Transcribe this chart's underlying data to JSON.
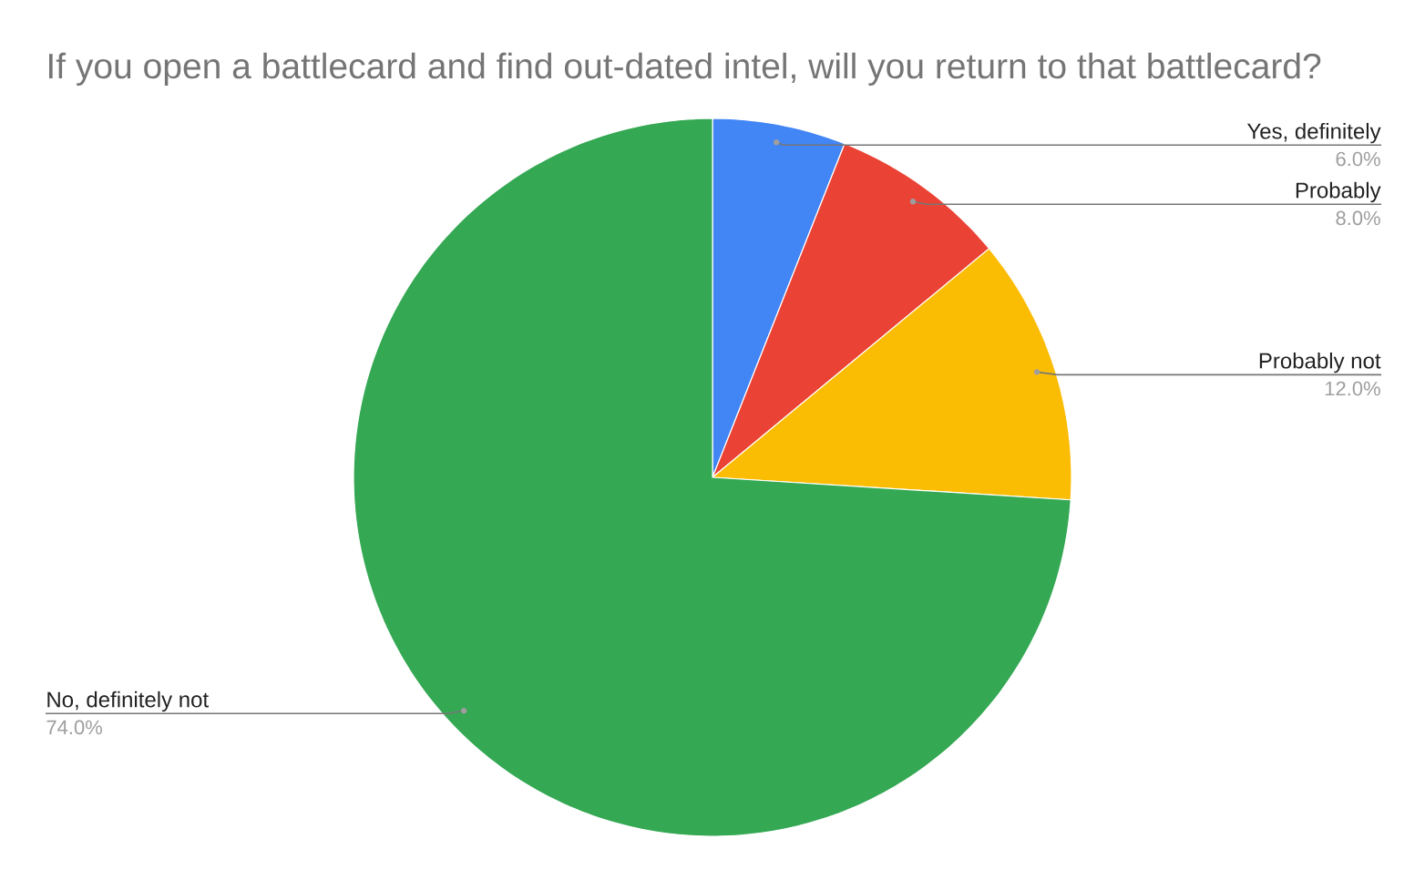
{
  "chart_data": {
    "type": "pie",
    "title": "If you open a battlecard and find out-dated intel, will you return to that battlecard?",
    "categories": [
      "Yes, definitely",
      "Probably",
      "Probably not",
      "No, definitely not"
    ],
    "values": [
      6,
      8,
      12,
      74
    ],
    "colors": [
      "#4285f4",
      "#ea4335",
      "#fbbc04",
      "#34a853"
    ],
    "value_labels": [
      "6.0%",
      "8.0%",
      "12.0%",
      "74.0%"
    ]
  }
}
